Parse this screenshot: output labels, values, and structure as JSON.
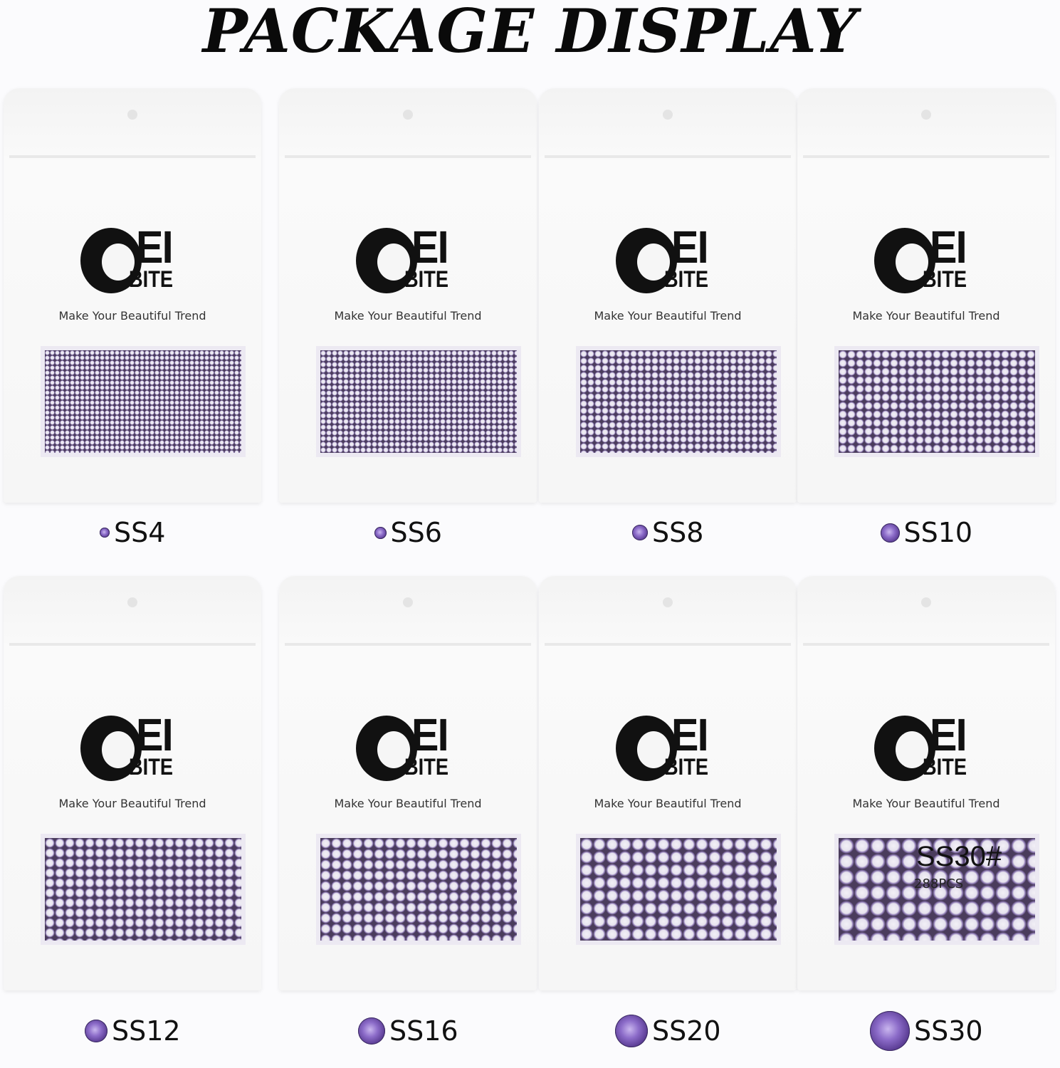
{
  "title": "PACKAGE DISPLAY",
  "brand": {
    "logo_top": "OEI",
    "logo_bottom": "BITE",
    "tagline": "Make Your Beautiful Trend"
  },
  "gem_color": "#7a5cb8",
  "bags": [
    {
      "size": "SS4",
      "dot": 7
    },
    {
      "size": "SS6",
      "dot": 8
    },
    {
      "size": "SS8",
      "dot": 10
    },
    {
      "size": "SS10",
      "dot": 12
    },
    {
      "size": "SS12",
      "dot": 14
    },
    {
      "size": "SS16",
      "dot": 15
    },
    {
      "size": "SS20",
      "dot": 18
    },
    {
      "size": "SS30",
      "dot": 22,
      "inner_label": "SS30#",
      "inner_count": "288PCS"
    }
  ]
}
